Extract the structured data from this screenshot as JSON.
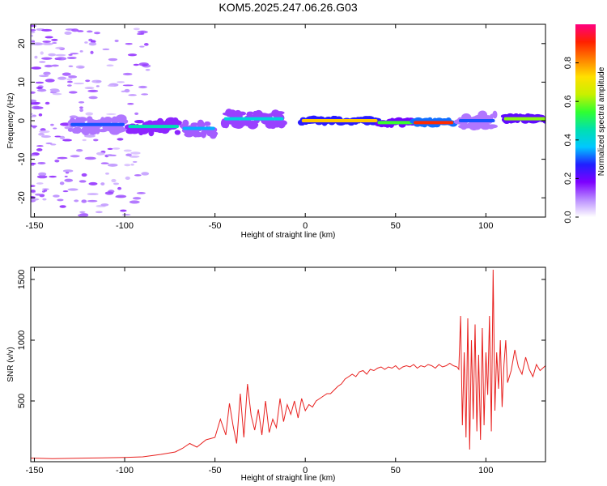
{
  "title": "KOM5.2025.247.06.26.G03",
  "chart_data": [
    {
      "type": "heatmap",
      "name": "spectrogram",
      "xlabel": "Height of straight line (km)",
      "ylabel": "Frequency (Hz)",
      "xlim": [
        -152,
        133
      ],
      "ylim": [
        -25,
        25
      ],
      "xticks": [
        -150,
        -100,
        -50,
        0,
        50,
        100
      ],
      "yticks": [
        -20,
        -10,
        0,
        10,
        20
      ],
      "colormap": [
        "#ffffff",
        "#b98cff",
        "#7d00ff",
        "#2020ff",
        "#00c8ff",
        "#00e0b0",
        "#30ff30",
        "#c8f000",
        "#ffe000",
        "#ff8000",
        "#ff2000",
        "#ff0080"
      ],
      "colorbar": {
        "label": "Normalized spectral amplitude",
        "range": [
          0,
          1
        ],
        "ticks": [
          "0.0",
          "0.2",
          "0.4",
          "0.6",
          "0.8"
        ]
      },
      "ridge_segments": [
        {
          "x": [
            -130,
            -100
          ],
          "freq": -1,
          "amp": 0.3
        },
        {
          "x": [
            -98,
            -70
          ],
          "freq": -1.5,
          "amp": 0.45
        },
        {
          "x": [
            -68,
            -50
          ],
          "freq": -2,
          "amp": 0.35
        },
        {
          "x": [
            -45,
            -12
          ],
          "freq": 0.5,
          "amp": 0.4
        },
        {
          "x": [
            -2,
            40
          ],
          "freq": 0,
          "amp": 0.75
        },
        {
          "x": [
            40,
            60
          ],
          "freq": -0.5,
          "amp": 0.55
        },
        {
          "x": [
            60,
            82
          ],
          "freq": -0.5,
          "amp": 0.9
        },
        {
          "x": [
            85,
            105
          ],
          "freq": 0,
          "amp": 0.3
        },
        {
          "x": [
            110,
            133
          ],
          "freq": 0.5,
          "amp": 0.6
        }
      ]
    },
    {
      "type": "line",
      "name": "snr",
      "xlabel": "Height of straight line (km)",
      "ylabel": "SNR (v/v)",
      "xlim": [
        -152,
        133
      ],
      "ylim": [
        0,
        1600
      ],
      "xticks": [
        -150,
        -100,
        -50,
        0,
        50,
        100
      ],
      "yticks": [
        500,
        1000,
        1500
      ],
      "color": "#e8201e",
      "series": [
        {
          "name": "SNR",
          "x": [
            -152,
            -140,
            -120,
            -100,
            -90,
            -80,
            -72,
            -68,
            -64,
            -60,
            -55,
            -50,
            -47,
            -44,
            -42,
            -40,
            -38,
            -36,
            -34,
            -32,
            -30,
            -28,
            -26,
            -24,
            -22,
            -20,
            -18,
            -16,
            -14,
            -12,
            -10,
            -8,
            -6,
            -4,
            -2,
            0,
            2,
            4,
            6,
            8,
            10,
            12,
            14,
            16,
            18,
            20,
            22,
            24,
            26,
            28,
            30,
            32,
            34,
            36,
            38,
            40,
            42,
            44,
            46,
            48,
            50,
            52,
            54,
            56,
            58,
            60,
            62,
            64,
            66,
            68,
            70,
            72,
            74,
            76,
            78,
            80,
            82,
            84,
            85,
            86,
            87,
            88,
            89,
            90,
            91,
            92,
            93,
            94,
            95,
            96,
            97,
            98,
            99,
            100,
            101,
            102,
            103,
            104,
            105,
            106,
            107,
            108,
            109,
            110,
            111,
            112,
            114,
            116,
            118,
            120,
            122,
            124,
            126,
            128,
            130,
            133
          ],
          "values": [
            30,
            25,
            30,
            35,
            40,
            60,
            80,
            110,
            150,
            120,
            180,
            200,
            350,
            220,
            480,
            300,
            150,
            560,
            200,
            640,
            380,
            260,
            430,
            220,
            500,
            240,
            350,
            280,
            520,
            330,
            470,
            390,
            500,
            360,
            520,
            420,
            470,
            450,
            500,
            520,
            540,
            560,
            560,
            590,
            620,
            640,
            680,
            700,
            720,
            700,
            740,
            750,
            720,
            760,
            750,
            770,
            780,
            760,
            780,
            770,
            790,
            760,
            780,
            790,
            780,
            800,
            770,
            790,
            780,
            800,
            790,
            770,
            800,
            780,
            790,
            810,
            790,
            780,
            760,
            1200,
            300,
            900,
            200,
            1180,
            100,
            1000,
            350,
            1130,
            250,
            880,
            180,
            1100,
            300,
            900,
            550,
            1200,
            250,
            1580,
            420,
            900,
            600,
            1000,
            450,
            800,
            1000,
            650,
            750,
            920,
            780,
            720,
            860,
            760,
            700,
            800,
            750,
            790
          ]
        }
      ]
    }
  ]
}
